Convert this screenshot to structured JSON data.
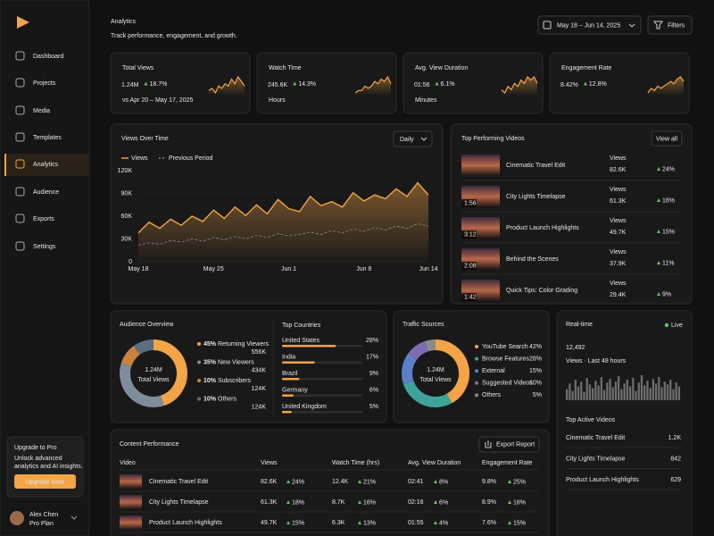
{
  "sidebar": {
    "nav": [
      "Dashboard",
      "Projects",
      "Media",
      "Templates",
      "Analytics",
      "Audience",
      "Exports",
      "Settings"
    ],
    "active": 4,
    "upgrade": {
      "title": "Upgrade to Pro",
      "text": [
        "Unlock advanced",
        "analytics and AI insights."
      ],
      "button": "Upgrade Now"
    },
    "user": {
      "name": "Alex Chen",
      "plan": "Pro Plan"
    }
  },
  "header": {
    "title": "Analytics",
    "subtitle": "Track performance, engagement, and growth.",
    "date_range": "May 18 – Jun 14, 2025",
    "filters": "Filters"
  },
  "kpis": [
    {
      "label": "Total Views",
      "value": "1.24M",
      "change": "18.7%",
      "note": "vs Apr 20 – May 17, 2025"
    },
    {
      "label": "Watch Time",
      "value": "245.6K",
      "change": "14.3%",
      "note": "Hours"
    },
    {
      "label": "Avg. View Duration",
      "value": "01:56",
      "change": "6.1%",
      "note": "Minutes"
    },
    {
      "label": "Engagement Rate",
      "value": "8.42%",
      "change": "12.8%"
    }
  ],
  "top_videos": {
    "title": "Top Performing Videos",
    "action": "View all",
    "views_label": "Views",
    "items": [
      {
        "title": "Cinematic Travel Edit",
        "views": "82.6K",
        "change": "24%"
      },
      {
        "title": "City Lights Timelapse",
        "duration": "1:56",
        "views": "61.3K",
        "change": "18%"
      },
      {
        "title": "Product Launch Highlights",
        "duration": "3:12",
        "views": "49.7K",
        "change": "15%"
      },
      {
        "title": "Behind the Scenes",
        "duration": "2:08",
        "views": "37.9K",
        "change": "11%"
      },
      {
        "title": "Quick Tips: Color Grading",
        "duration": "1:42",
        "views": "29.4K",
        "change": "9%"
      }
    ]
  },
  "countries": {
    "title": "Top Countries",
    "names": [
      "United States",
      "India",
      "Brazil",
      "Germany",
      "United Kingdom"
    ],
    "values": [
      28,
      17,
      9,
      6,
      5
    ],
    "value_labels": [
      "28%",
      "17%",
      "9%",
      "6%",
      "5%"
    ],
    "color": "#f2a446"
  },
  "realtime": {
    "live": "Live",
    "value": "12,492",
    "note": "Views · Last 48 hours",
    "active_title": "Top Active Videos",
    "active": [
      {
        "title": "Cinematic Travel Edit",
        "value": "1.2K"
      },
      {
        "title": "City Lights Timelapse",
        "value": "842"
      },
      {
        "title": "Product Launch Highlights",
        "value": "629"
      }
    ]
  },
  "content": {
    "title": "Content Performance",
    "action": "Export Report",
    "headers": [
      "Video",
      "Views",
      "Watch Time (hrs)",
      "Avg. View Duration",
      "Engagement Rate"
    ],
    "rows": [
      [
        "Cinematic Travel Edit",
        "82.6K",
        "24%",
        "12.4K",
        "21%",
        "02:41",
        "8%",
        "9.8%",
        "25%"
      ],
      [
        "City Lights Timelapse",
        "61.3K",
        "18%",
        "8.7K",
        "16%",
        "02:16",
        "6%",
        "8.9%",
        "18%"
      ],
      [
        "Product Launch Highlights",
        "49.7K",
        "15%",
        "6.3K",
        "13%",
        "01:55",
        "4%",
        "7.6%",
        "15%"
      ]
    ]
  },
  "chart_data": [
    {
      "type": "line",
      "title": "Views Over Time",
      "control": "Daily",
      "x": [
        "May 18",
        null,
        null,
        null,
        null,
        null,
        null,
        "May 25",
        null,
        null,
        null,
        null,
        null,
        null,
        "Jun 1",
        null,
        null,
        null,
        null,
        null,
        null,
        "Jun 8",
        null,
        null,
        null,
        null,
        null,
        "Jun 14"
      ],
      "ylim": [
        0,
        120000
      ],
      "yticks": [
        0,
        {
          "value": 30000,
          "label": "30K"
        },
        {
          "value": 60000,
          "label": "60K"
        },
        {
          "value": 90000,
          "label": "90K"
        },
        {
          "value": 120000,
          "label": "120K"
        }
      ],
      "grid": true,
      "series": [
        {
          "name": "Views",
          "color": "#f2a446",
          "values": [
            38000,
            52000,
            44000,
            56000,
            48000,
            60000,
            53000,
            68000,
            57000,
            72000,
            61000,
            75000,
            63000,
            82000,
            70000,
            66000,
            86000,
            74000,
            79000,
            72000,
            91000,
            80000,
            88000,
            83000,
            96000,
            86000,
            104000,
            88000
          ]
        },
        {
          "name": "Previous Period",
          "color": "#8a8a8a",
          "dashed": true,
          "values": [
            22000,
            25000,
            23000,
            28000,
            26000,
            30000,
            27000,
            32000,
            29000,
            33000,
            30000,
            35000,
            32000,
            37000,
            34000,
            36000,
            39000,
            36000,
            41000,
            38000,
            43000,
            40000,
            45000,
            42000,
            47000,
            44000,
            50000,
            47000
          ]
        }
      ]
    },
    {
      "type": "pie",
      "title": "Audience Overview",
      "center_value": "1.24M",
      "center_label": "Total Views",
      "categories": [
        "Returning Viewers",
        "New Viewers",
        "Subscribers",
        "Others"
      ],
      "values": [
        45,
        35,
        10,
        10
      ],
      "value_labels": [
        "45%",
        "35%",
        "10%",
        "10%"
      ],
      "counts": [
        "556K",
        "434K",
        "124K",
        "124K"
      ],
      "colors": [
        "#f2a446",
        "#7f8c9c",
        "#c9823a",
        "#5d6d80"
      ]
    },
    {
      "type": "pie",
      "title": "Traffic Sources",
      "center_value": "1.24M",
      "center_label": "Total Views",
      "categories": [
        "YouTube Search",
        "Browse Features",
        "External",
        "Suggested Videos",
        "Others"
      ],
      "values": [
        42,
        28,
        15,
        10,
        5
      ],
      "value_labels": [
        "42%",
        "28%",
        "15%",
        "10%",
        "5%"
      ],
      "colors": [
        "#f2a446",
        "#3fa39b",
        "#5b7fc7",
        "#7e6bb0",
        "#8a8a8a"
      ]
    },
    {
      "type": "bar",
      "title": "Real-time",
      "color": "#6e6e6e",
      "values": [
        12,
        18,
        10,
        22,
        15,
        20,
        9,
        24,
        17,
        13,
        21,
        16,
        25,
        11,
        19,
        23,
        14,
        20,
        26,
        12,
        18,
        22,
        15,
        24,
        10,
        19,
        27,
        16,
        21,
        13,
        23,
        18,
        25,
        14,
        20,
        17,
        22,
        12,
        19,
        15
      ]
    },
    {
      "type": "line",
      "color": "#f2a446",
      "values": [
        4,
        5,
        3,
        6,
        5,
        7,
        6,
        9,
        7,
        10,
        8,
        6
      ]
    },
    {
      "type": "line",
      "color": "#f2a446",
      "values": [
        3,
        4,
        4,
        6,
        5,
        6,
        8,
        7,
        9,
        8,
        10,
        7
      ]
    },
    {
      "type": "line",
      "color": "#f2a446",
      "values": [
        5,
        4,
        6,
        5,
        7,
        6,
        8,
        7,
        9,
        8,
        9,
        7
      ]
    },
    {
      "type": "line",
      "color": "#f2a446",
      "values": [
        3,
        5,
        4,
        6,
        5,
        6,
        7,
        8,
        7,
        9,
        10,
        8
      ]
    }
  ]
}
